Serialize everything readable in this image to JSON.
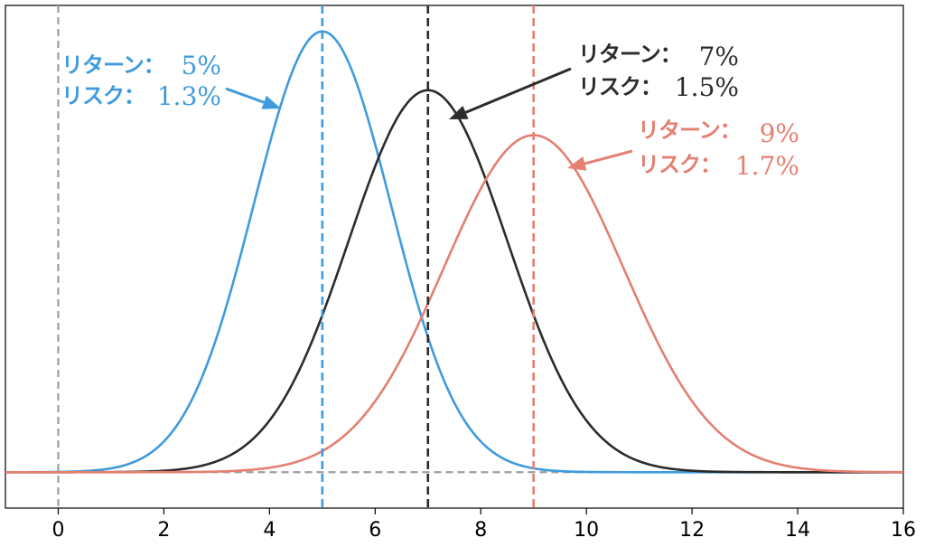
{
  "chart_data": {
    "type": "line",
    "title": "",
    "xlabel": "",
    "ylabel": "",
    "xlim": [
      -1,
      16
    ],
    "xticks": [
      0,
      2,
      4,
      6,
      8,
      10,
      12,
      14,
      16
    ],
    "ylim": [
      -0.025,
      0.325
    ],
    "grid": false,
    "reference_lines": {
      "vertical_zero_x": 0,
      "horizontal_zero_y": 0,
      "color": "#9e9e9e"
    },
    "series": [
      {
        "mean": 5,
        "std": 1.3,
        "color": "#3f9bdd",
        "return_label": "リターン：",
        "return_value": "5%",
        "risk_label": "リスク：",
        "risk_value": "1.3%"
      },
      {
        "mean": 7,
        "std": 1.5,
        "color": "#2b2b2b",
        "return_label": "リターン：",
        "return_value": "7%",
        "risk_label": "リスク：",
        "risk_value": "1.5%"
      },
      {
        "mean": 9,
        "std": 1.7,
        "color": "#e47f71",
        "return_label": "リターン：",
        "return_value": "9%",
        "risk_label": "リスク：",
        "risk_value": "1.7%"
      }
    ]
  }
}
